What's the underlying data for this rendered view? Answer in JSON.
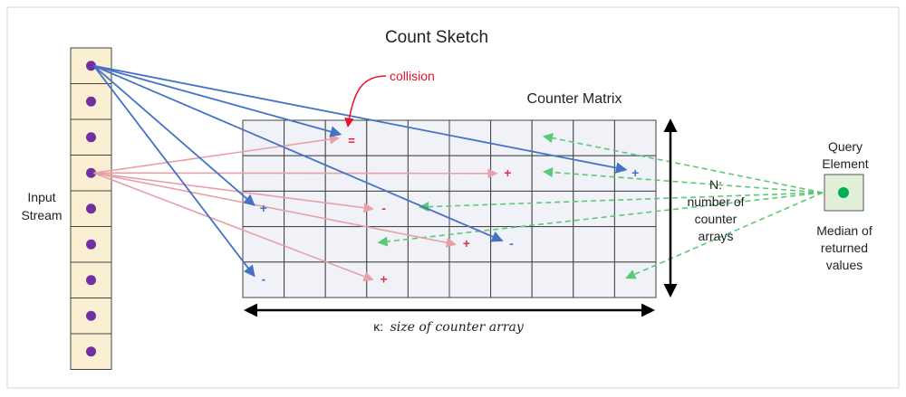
{
  "title": "Count Sketch",
  "input_stream": {
    "label_line1": "Input",
    "label_line2": "Stream",
    "cells": 9
  },
  "collision": {
    "label": "collision",
    "mark": "="
  },
  "matrix": {
    "title": "Counter Matrix",
    "rows": 5,
    "cols": 10,
    "k_prefix": "κ:",
    "k_label": "size of counter array",
    "n_lines": [
      "N:",
      "number of",
      "counter",
      "arrays"
    ]
  },
  "query": {
    "label_lines": [
      "Query",
      "Element"
    ],
    "median_lines": [
      "Median of",
      "returned",
      "values"
    ]
  },
  "signs": {
    "blue": [
      {
        "row": 1,
        "col": 9,
        "sign": "+"
      },
      {
        "row": 2,
        "col": 0,
        "sign": "+"
      },
      {
        "row": 3,
        "col": 6,
        "sign": "-"
      },
      {
        "row": 4,
        "col": 0,
        "sign": "-"
      }
    ],
    "pink": [
      {
        "row": 1,
        "col": 6,
        "sign": "+"
      },
      {
        "row": 2,
        "col": 3,
        "sign": "-"
      },
      {
        "row": 3,
        "col": 5,
        "sign": "+"
      },
      {
        "row": 4,
        "col": 3,
        "sign": "+"
      }
    ]
  },
  "colors": {
    "cell_fill": "#fbefd3",
    "dot": "#7030a0",
    "blue": "#4472c4",
    "pink": "#e8a0a8",
    "pink_text": "#e0304a",
    "red": "#e8102a",
    "green": "#5cc977",
    "query_dot": "#00b050",
    "query_fill": "#e2f0d9",
    "grid_fill": "#f1f2f8"
  }
}
